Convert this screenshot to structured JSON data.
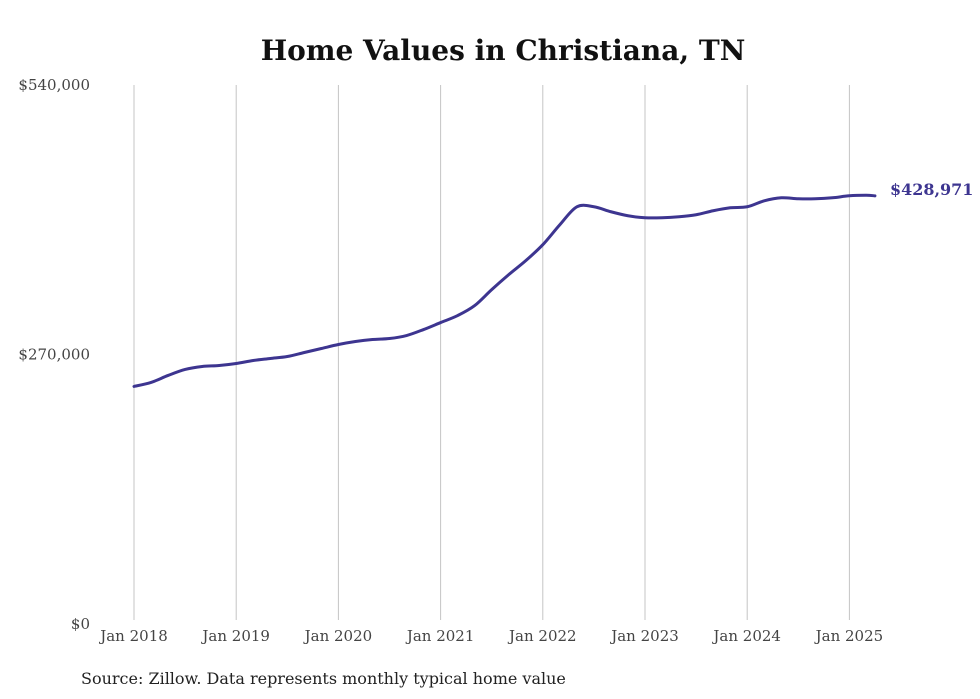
{
  "chart_data": {
    "type": "line",
    "title": "Home Values in Christiana, TN",
    "xlabel": "",
    "ylabel": "",
    "ylim": [
      0,
      540000
    ],
    "y_ticks": [
      0,
      270000,
      540000
    ],
    "y_tick_labels": [
      "$0",
      "$270,000",
      "$540,000"
    ],
    "x_ticks": [
      "2018-01",
      "2019-01",
      "2020-01",
      "2021-01",
      "2022-01",
      "2023-01",
      "2024-01",
      "2025-01"
    ],
    "x_tick_labels": [
      "Jan 2018",
      "Jan 2019",
      "Jan 2020",
      "Jan 2021",
      "Jan 2022",
      "Jan 2023",
      "Jan 2024",
      "Jan 2025"
    ],
    "grid": "vertical",
    "series": [
      {
        "color": "#3d3590",
        "x": [
          "2018-01",
          "2018-03",
          "2018-05",
          "2018-07",
          "2018-09",
          "2018-11",
          "2019-01",
          "2019-03",
          "2019-05",
          "2019-07",
          "2019-09",
          "2019-11",
          "2020-01",
          "2020-03",
          "2020-05",
          "2020-07",
          "2020-09",
          "2020-11",
          "2021-01",
          "2021-03",
          "2021-05",
          "2021-07",
          "2021-09",
          "2021-11",
          "2022-01",
          "2022-03",
          "2022-05",
          "2022-07",
          "2022-09",
          "2022-11",
          "2023-01",
          "2023-03",
          "2023-05",
          "2023-07",
          "2023-09",
          "2023-11",
          "2024-01",
          "2024-03",
          "2024-05",
          "2024-07",
          "2024-09",
          "2024-11",
          "2025-01",
          "2025-03",
          "2025-04"
        ],
        "values": [
          238000,
          242000,
          249000,
          255000,
          258000,
          259000,
          261000,
          264000,
          266000,
          268000,
          272000,
          276000,
          280000,
          283000,
          285000,
          286000,
          289000,
          295000,
          302000,
          309000,
          319000,
          335000,
          350000,
          364000,
          380000,
          400000,
          418000,
          418000,
          413000,
          409000,
          407000,
          407000,
          408000,
          410000,
          414000,
          417000,
          418000,
          424000,
          427000,
          426000,
          426000,
          427000,
          429000,
          429500,
          428971
        ]
      }
    ],
    "end_label": "$428,971",
    "source": "Source: Zillow. Data represents monthly typical home value"
  }
}
